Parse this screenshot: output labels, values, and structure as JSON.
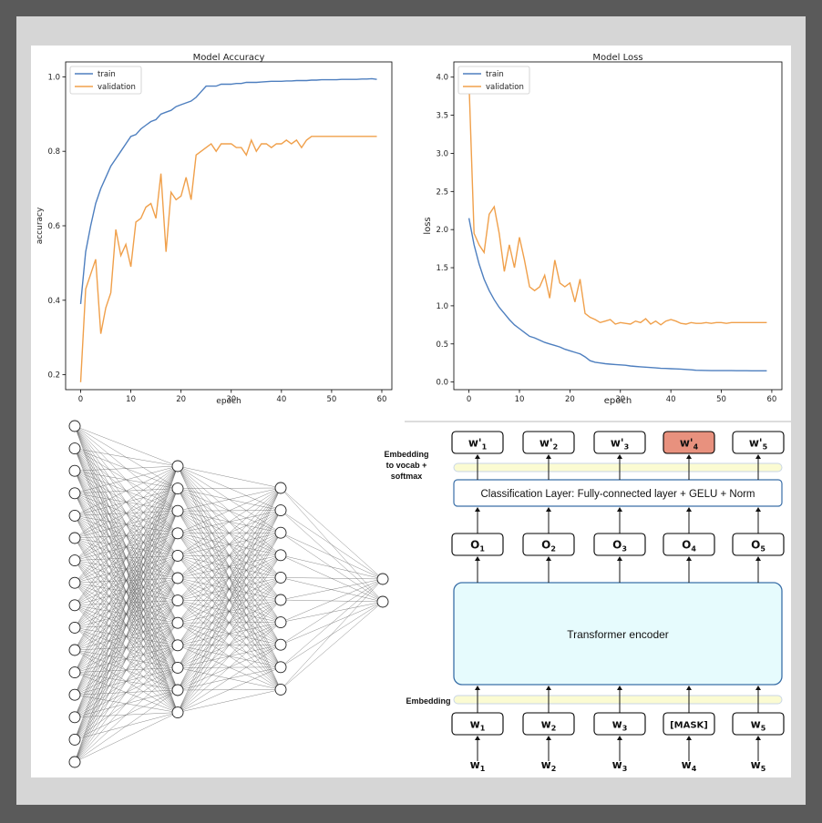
{
  "charts": {
    "accuracy": {
      "title": "Model Accuracy",
      "xlabel": "epoch",
      "ylabel": "accuracy",
      "legend": [
        "train",
        "validation"
      ],
      "xticks": [
        "0",
        "10",
        "20",
        "30",
        "40",
        "50",
        "60"
      ],
      "yticks": [
        "0.2",
        "0.4",
        "0.6",
        "0.8",
        "1.0"
      ]
    },
    "loss": {
      "title": "Model Loss",
      "xlabel": "epoch",
      "ylabel": "loss",
      "legend": [
        "train",
        "validation"
      ],
      "xticks": [
        "0",
        "10",
        "20",
        "30",
        "40",
        "50",
        "60"
      ],
      "yticks": [
        "0.0",
        "0.5",
        "1.0",
        "1.5",
        "2.0",
        "2.5",
        "3.0",
        "3.5",
        "4.0"
      ]
    }
  },
  "chart_data": [
    {
      "type": "line",
      "title": "Model Accuracy",
      "xlabel": "epoch",
      "ylabel": "accuracy",
      "xlim": [
        -3,
        62
      ],
      "ylim": [
        0.16,
        1.04
      ],
      "grid": false,
      "legend_position": "top-left",
      "colors": {
        "train": "#4e7fbf",
        "validation": "#f0a04b"
      },
      "series": [
        {
          "name": "train",
          "x": [
            0,
            1,
            2,
            3,
            4,
            5,
            6,
            7,
            8,
            9,
            10,
            11,
            12,
            13,
            14,
            15,
            16,
            17,
            18,
            19,
            20,
            21,
            22,
            23,
            24,
            25,
            26,
            27,
            28,
            29,
            30,
            31,
            32,
            33,
            34,
            35,
            36,
            37,
            38,
            39,
            40,
            41,
            42,
            43,
            44,
            45,
            46,
            47,
            48,
            49,
            50,
            51,
            52,
            53,
            54,
            55,
            56,
            57,
            58,
            59
          ],
          "y": [
            0.39,
            0.53,
            0.6,
            0.66,
            0.7,
            0.73,
            0.76,
            0.78,
            0.8,
            0.82,
            0.84,
            0.845,
            0.86,
            0.87,
            0.88,
            0.885,
            0.9,
            0.905,
            0.91,
            0.92,
            0.925,
            0.93,
            0.935,
            0.945,
            0.96,
            0.975,
            0.975,
            0.975,
            0.98,
            0.98,
            0.98,
            0.982,
            0.982,
            0.985,
            0.985,
            0.985,
            0.986,
            0.987,
            0.988,
            0.988,
            0.988,
            0.989,
            0.989,
            0.99,
            0.99,
            0.99,
            0.991,
            0.991,
            0.992,
            0.992,
            0.992,
            0.992,
            0.993,
            0.993,
            0.993,
            0.993,
            0.994,
            0.994,
            0.995,
            0.993
          ]
        },
        {
          "name": "validation",
          "x": [
            0,
            1,
            2,
            3,
            4,
            5,
            6,
            7,
            8,
            9,
            10,
            11,
            12,
            13,
            14,
            15,
            16,
            17,
            18,
            19,
            20,
            21,
            22,
            23,
            24,
            25,
            26,
            27,
            28,
            29,
            30,
            31,
            32,
            33,
            34,
            35,
            36,
            37,
            38,
            39,
            40,
            41,
            42,
            43,
            44,
            45,
            46,
            47,
            48,
            49,
            50,
            51,
            52,
            53,
            54,
            55,
            56,
            57,
            58,
            59
          ],
          "y": [
            0.18,
            0.43,
            0.47,
            0.51,
            0.31,
            0.38,
            0.42,
            0.59,
            0.52,
            0.55,
            0.49,
            0.61,
            0.62,
            0.65,
            0.66,
            0.62,
            0.74,
            0.53,
            0.69,
            0.67,
            0.68,
            0.73,
            0.67,
            0.79,
            0.8,
            0.81,
            0.82,
            0.8,
            0.82,
            0.82,
            0.82,
            0.81,
            0.81,
            0.79,
            0.83,
            0.8,
            0.82,
            0.82,
            0.81,
            0.82,
            0.82,
            0.83,
            0.82,
            0.83,
            0.81,
            0.83,
            0.84,
            0.84,
            0.84,
            0.84,
            0.84,
            0.84,
            0.84,
            0.84,
            0.84,
            0.84,
            0.84,
            0.84,
            0.84,
            0.84
          ]
        }
      ]
    },
    {
      "type": "line",
      "title": "Model Loss",
      "xlabel": "epoch",
      "ylabel": "loss",
      "xlim": [
        -3,
        62
      ],
      "ylim": [
        -0.1,
        4.2
      ],
      "grid": false,
      "legend_position": "top-left",
      "colors": {
        "train": "#4e7fbf",
        "validation": "#f0a04b"
      },
      "series": [
        {
          "name": "train",
          "x": [
            0,
            1,
            2,
            3,
            4,
            5,
            6,
            7,
            8,
            9,
            10,
            11,
            12,
            13,
            14,
            15,
            16,
            17,
            18,
            19,
            20,
            21,
            22,
            23,
            24,
            25,
            26,
            27,
            28,
            29,
            30,
            31,
            32,
            33,
            34,
            35,
            36,
            37,
            38,
            39,
            40,
            41,
            42,
            43,
            44,
            45,
            46,
            47,
            48,
            49,
            50,
            51,
            52,
            53,
            54,
            55,
            56,
            57,
            58,
            59
          ],
          "y": [
            2.15,
            1.8,
            1.55,
            1.35,
            1.2,
            1.08,
            0.98,
            0.9,
            0.82,
            0.75,
            0.7,
            0.65,
            0.6,
            0.58,
            0.55,
            0.52,
            0.5,
            0.48,
            0.46,
            0.43,
            0.41,
            0.39,
            0.37,
            0.33,
            0.28,
            0.26,
            0.25,
            0.24,
            0.235,
            0.23,
            0.225,
            0.22,
            0.21,
            0.205,
            0.2,
            0.195,
            0.19,
            0.185,
            0.18,
            0.178,
            0.175,
            0.172,
            0.17,
            0.165,
            0.16,
            0.155,
            0.153,
            0.152,
            0.15,
            0.15,
            0.15,
            0.15,
            0.15,
            0.148,
            0.148,
            0.148,
            0.147,
            0.147,
            0.147,
            0.147
          ]
        },
        {
          "name": "validation",
          "x": [
            0,
            1,
            2,
            3,
            4,
            5,
            6,
            7,
            8,
            9,
            10,
            11,
            12,
            13,
            14,
            15,
            16,
            17,
            18,
            19,
            20,
            21,
            22,
            23,
            24,
            25,
            26,
            27,
            28,
            29,
            30,
            31,
            32,
            33,
            34,
            35,
            36,
            37,
            38,
            39,
            40,
            41,
            42,
            43,
            44,
            45,
            46,
            47,
            48,
            49,
            50,
            51,
            52,
            53,
            54,
            55,
            56,
            57,
            58,
            59
          ],
          "y": [
            3.95,
            1.95,
            1.8,
            1.7,
            2.2,
            2.3,
            1.95,
            1.45,
            1.8,
            1.5,
            1.9,
            1.6,
            1.25,
            1.2,
            1.25,
            1.4,
            1.1,
            1.6,
            1.3,
            1.25,
            1.3,
            1.05,
            1.35,
            0.9,
            0.85,
            0.82,
            0.78,
            0.8,
            0.82,
            0.76,
            0.78,
            0.77,
            0.76,
            0.8,
            0.78,
            0.83,
            0.76,
            0.8,
            0.75,
            0.8,
            0.82,
            0.8,
            0.77,
            0.76,
            0.78,
            0.77,
            0.77,
            0.78,
            0.77,
            0.78,
            0.78,
            0.77,
            0.78,
            0.78,
            0.78,
            0.78,
            0.78,
            0.78,
            0.78,
            0.78
          ]
        }
      ]
    }
  ],
  "network": {
    "layers": [
      16,
      12,
      10,
      2
    ]
  },
  "bert": {
    "left_labels": {
      "top": [
        "Embedding",
        "to vocab +",
        "softmax"
      ],
      "bottom": "Embedding"
    },
    "classification_layer": "Classification Layer: Fully-connected layer + GELU + Norm",
    "encoder": "Transformer encoder",
    "outputs": [
      {
        "base": "w'",
        "sub": "1",
        "highlight": false
      },
      {
        "base": "w'",
        "sub": "2",
        "highlight": false
      },
      {
        "base": "w'",
        "sub": "3",
        "highlight": false
      },
      {
        "base": "w'",
        "sub": "4",
        "highlight": true
      },
      {
        "base": "w'",
        "sub": "5",
        "highlight": false
      }
    ],
    "o_tokens": [
      {
        "base": "O",
        "sub": "1"
      },
      {
        "base": "O",
        "sub": "2"
      },
      {
        "base": "O",
        "sub": "3"
      },
      {
        "base": "O",
        "sub": "4"
      },
      {
        "base": "O",
        "sub": "5"
      }
    ],
    "input_tokens": [
      {
        "base": "w",
        "sub": "1"
      },
      {
        "base": "w",
        "sub": "2"
      },
      {
        "base": "w",
        "sub": "3"
      },
      {
        "base": "[MASK]",
        "sub": ""
      },
      {
        "base": "w",
        "sub": "5"
      }
    ],
    "raw_words": [
      {
        "base": "w",
        "sub": "1"
      },
      {
        "base": "w",
        "sub": "2"
      },
      {
        "base": "w",
        "sub": "3"
      },
      {
        "base": "w",
        "sub": "4"
      },
      {
        "base": "w",
        "sub": "5"
      }
    ],
    "colors": {
      "box_border": "#000000",
      "highlight_fill": "#e8917e",
      "encoder_fill": "#e6fbfd",
      "encoder_border": "#3a6fa8",
      "embed_fill": "#fbfbd2",
      "embed_border": "#c9d6e6"
    }
  }
}
